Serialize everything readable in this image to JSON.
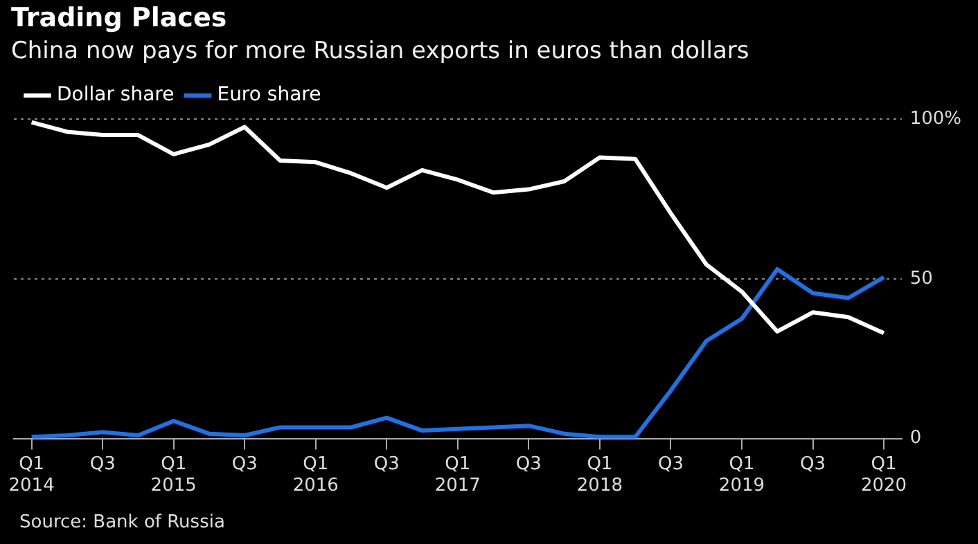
{
  "chart_data": {
    "type": "line",
    "title": "Trading Places",
    "subtitle": "China now pays for more Russian exports in euros than dollars",
    "categories": [
      "Q1 2014",
      null,
      "Q3",
      null,
      "Q1 2015",
      null,
      "Q3",
      null,
      "Q1 2016",
      null,
      "Q3",
      null,
      "Q1 2017",
      null,
      "Q3",
      null,
      "Q1 2018",
      null,
      "Q3",
      null,
      "Q1 2019",
      null,
      "Q3",
      null,
      "Q1 2020"
    ],
    "series": [
      {
        "name": "Dollar share",
        "color": "#ffffff",
        "values": [
          99,
          96,
          95,
          95,
          89,
          92,
          97.5,
          87,
          86.5,
          83,
          78.5,
          84,
          81,
          77,
          78,
          80.5,
          88,
          87.5,
          70.5,
          54.5,
          46,
          33.5,
          39.5,
          38,
          33
        ]
      },
      {
        "name": "Euro share",
        "color": "#1a73e8",
        "values": [
          0.5,
          1,
          2,
          1,
          5.5,
          1.5,
          1,
          3.5,
          3.5,
          3.5,
          6.5,
          2.5,
          3,
          3.5,
          4,
          1.5,
          0.5,
          0.5,
          15,
          30.5,
          37.5,
          53,
          45.5,
          44,
          50.5
        ]
      }
    ],
    "ylim": [
      0,
      100
    ],
    "yticks": [
      0,
      50,
      {
        "value": 100,
        "label": "100%"
      }
    ],
    "grid": "y",
    "legend": "top left",
    "line_style": "solid",
    "marker": "none",
    "annotations": [
      "Source: Bank of Russia"
    ]
  }
}
